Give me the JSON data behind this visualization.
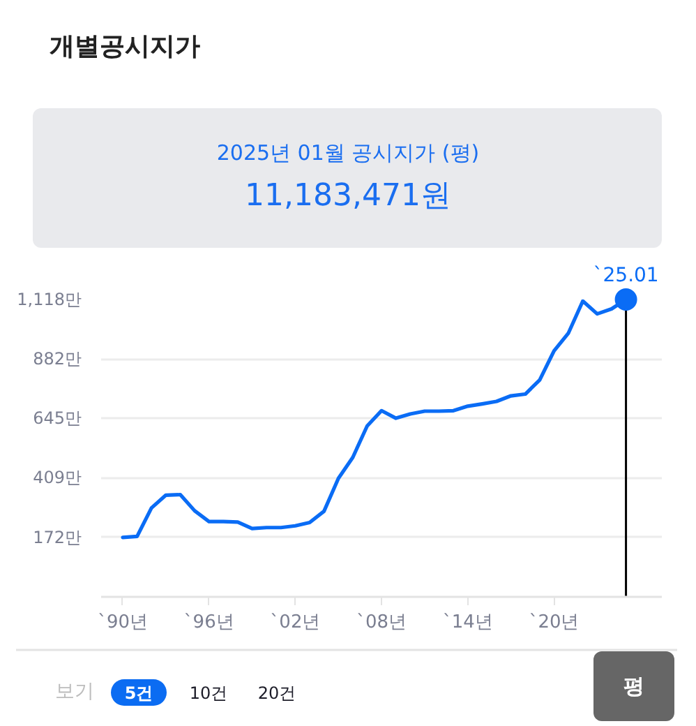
{
  "chart_data": {
    "type": "line",
    "title": "개별공시지가",
    "subtitle": "2025년 01월 공시지가 (평)",
    "annotations": [
      "11,183,471원",
      "보기",
      "5건",
      "10건",
      "20건",
      "평"
    ],
    "x": [
      "1990-01",
      "1991-01",
      "1992-01",
      "1993-01",
      "1994-01",
      "1995-01",
      "1996-01",
      "1997-01",
      "1998-01",
      "1999-01",
      "2000-01",
      "2001-01",
      "2002-01",
      "2003-01",
      "2004-01",
      "2005-01",
      "2006-01",
      "2007-01",
      "2008-01",
      "2009-01",
      "2010-01",
      "2011-01",
      "2012-01",
      "2013-01",
      "2014-01",
      "2015-01",
      "2016-01",
      "2017-01",
      "2018-01",
      "2019-01",
      "2020-01",
      "2021-01",
      "2022-01",
      "2023-01",
      "2024-01",
      "2025-01"
    ],
    "series": [
      {
        "color": "#0a6cf5",
        "values": [
          172,
          176,
          289,
          340,
          342,
          278,
          235,
          235,
          233,
          207,
          211,
          211,
          218,
          231,
          276,
          407,
          490,
          615,
          676,
          646,
          663,
          674,
          674,
          676,
          694,
          703,
          713,
          735,
          742,
          798,
          914,
          985,
          1112,
          1061,
          1081,
          1118.3471
        ]
      },
      {
        "type": "scatter",
        "marker": "circle",
        "color": "#0a6cf5",
        "x": [
          "2025-01"
        ],
        "values": [
          1118.3471
        ]
      }
    ],
    "xlim": [
      "1988-07",
      "2027-07"
    ],
    "xticks": [
      {
        "value": "1990-01",
        "label": "`90년"
      },
      {
        "value": "1996-01",
        "label": "`96년"
      },
      {
        "value": "2002-01",
        "label": "`02년"
      },
      {
        "value": "2008-01",
        "label": "`08년"
      },
      {
        "value": "2014-01",
        "label": "`14년"
      },
      {
        "value": "2020-01",
        "label": "`20년"
      }
    ],
    "ylim": [
      -64.6,
      1118.3471
    ],
    "yticks": [
      {
        "value": 172,
        "label": "172만"
      },
      {
        "value": 409,
        "label": "409만"
      },
      {
        "value": 645,
        "label": "645만"
      },
      {
        "value": 882,
        "label": "882만"
      },
      {
        "value": 1118.3471,
        "label": "1,118만"
      }
    ],
    "ref_lines": [
      {
        "axis": "x",
        "value": "2025-01",
        "label": "`25.01",
        "color": "#000000"
      }
    ],
    "grid": "y"
  }
}
